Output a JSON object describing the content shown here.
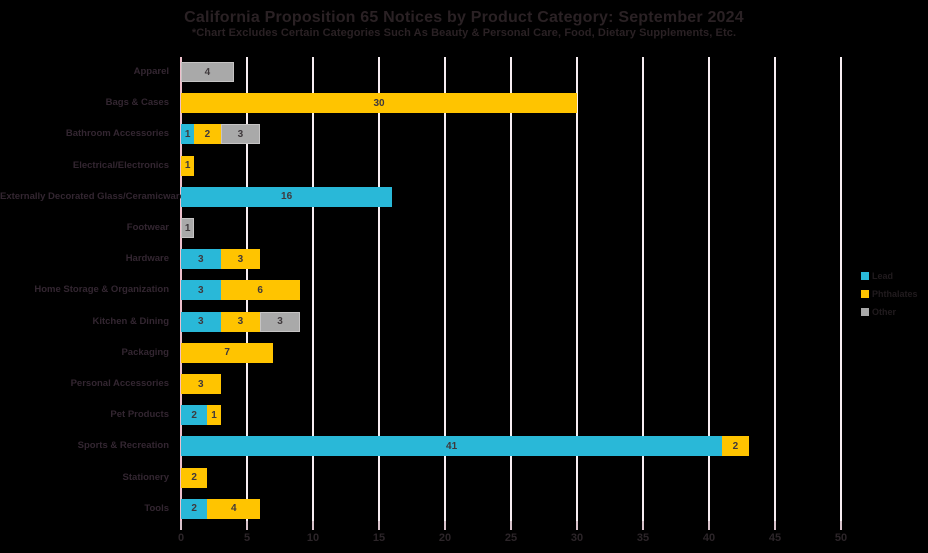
{
  "chart_data": {
    "type": "bar",
    "orientation": "horizontal",
    "stacked": true,
    "title": "California Proposition 65 Notices by Product Category: September 2024",
    "subtitle": "*Chart Excludes Certain Categories Such As Beauty & Personal Care, Food, Dietary Supplements, Etc.",
    "categories": [
      "Apparel",
      "Bags & Cases",
      "Bathroom Accessories",
      "Electrical/Electronics",
      "Externally Decorated Glass/Ceramicware",
      "Footwear",
      "Hardware",
      "Home Storage & Organization",
      "Kitchen & Dining",
      "Packaging",
      "Personal Accessories",
      "Pet Products",
      "Sports & Recreation",
      "Stationery",
      "Tools"
    ],
    "series": [
      {
        "name": "Lead",
        "color": "#29B8D8",
        "values": [
          0,
          0,
          1,
          0,
          16,
          0,
          3,
          3,
          3,
          0,
          0,
          2,
          41,
          0,
          2
        ]
      },
      {
        "name": "Phthalates",
        "color": "#FFC400",
        "values": [
          0,
          30,
          2,
          1,
          0,
          0,
          3,
          6,
          3,
          7,
          3,
          1,
          2,
          2,
          4
        ]
      },
      {
        "name": "Other",
        "color": "#A9A9A9",
        "values": [
          4,
          0,
          3,
          0,
          0,
          1,
          0,
          0,
          3,
          0,
          0,
          0,
          0,
          0,
          0
        ],
        "border_color": "#C6C4C4"
      }
    ],
    "x_ticks": [
      0,
      5,
      10,
      15,
      20,
      25,
      30,
      35,
      40,
      45,
      50
    ],
    "xlim": [
      0,
      50
    ],
    "grid": true,
    "legend_position": "right"
  },
  "colors": {
    "background": "#000000",
    "gridline": "#F7EEF2",
    "axis_line": "#EDBFCB",
    "tick_mark": "#D8C2CB",
    "title_text": "#2A2124",
    "category_text": "#332631",
    "value_text": "#3F393C",
    "axis_text": "#2C2529",
    "legend_text": "#211B1E"
  }
}
